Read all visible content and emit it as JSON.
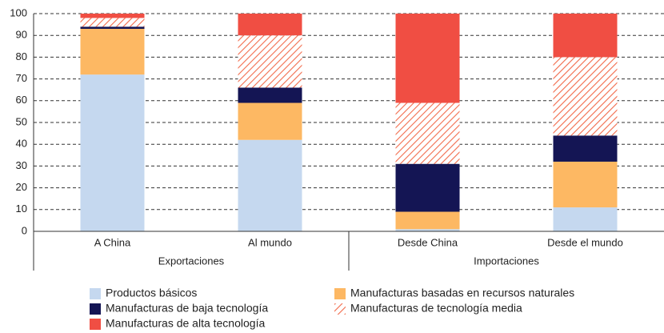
{
  "chart_data": {
    "type": "stacked_bar",
    "categories": [
      "A China",
      "Al mundo",
      "Desde China",
      "Desde el mundo"
    ],
    "groups": [
      "Exportaciones",
      "Importaciones"
    ],
    "series": [
      {
        "name": "Productos básicos",
        "color": "#c5d8ef",
        "values": [
          72,
          42,
          1,
          11
        ]
      },
      {
        "name": "Manufacturas basadas en recursos naturales",
        "color": "#fdb863",
        "values": [
          21,
          17,
          8,
          21
        ]
      },
      {
        "name": "Manufacturas de baja tecnología",
        "color": "#141554",
        "values": [
          1,
          7,
          22,
          12
        ]
      },
      {
        "name": "Manufacturas de tecnología media",
        "color": "#f26b4b",
        "pattern": "hatch",
        "values": [
          4,
          24,
          28,
          36
        ]
      },
      {
        "name": "Manufacturas de alta tecnología",
        "color": "#f04e43",
        "values": [
          2,
          10,
          41,
          20
        ]
      }
    ],
    "ylim": [
      0,
      100
    ],
    "yticks": [
      0,
      10,
      20,
      30,
      40,
      50,
      60,
      70,
      80,
      90,
      100
    ],
    "grid": true
  }
}
